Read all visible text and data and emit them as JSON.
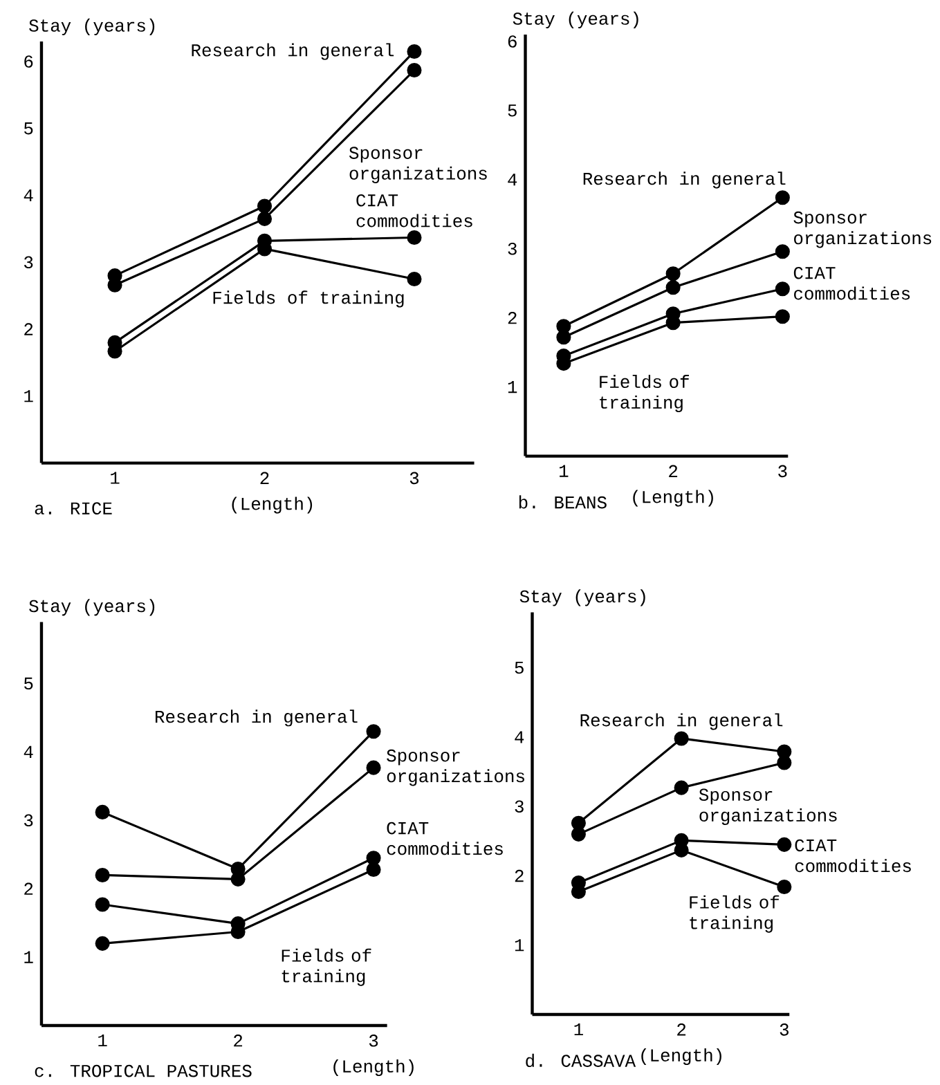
{
  "chart_data": [
    {
      "type": "line",
      "title": "a. RICE",
      "xlabel": "(Length)",
      "ylabel": "Stay (years)",
      "categories": [
        "1",
        "2",
        "3"
      ],
      "ylim": [
        0,
        6.3
      ],
      "yticks": [
        1,
        2,
        3,
        4,
        5,
        6
      ],
      "marker": "circle",
      "series": [
        {
          "name": "Research in general",
          "color": "#000000",
          "values": [
            2.8,
            3.84,
            6.15
          ]
        },
        {
          "name": "Sponsor organizations",
          "color": "#000000",
          "values": [
            2.66,
            3.65,
            5.87
          ]
        },
        {
          "name": "CIAT commodities",
          "color": "#000000",
          "values": [
            1.8,
            3.32,
            3.37
          ]
        },
        {
          "name": "Fields of training",
          "color": "#000000",
          "values": [
            1.67,
            3.2,
            2.75
          ]
        }
      ]
    },
    {
      "type": "line",
      "title": "b. BEANS",
      "xlabel": "(Length)",
      "ylabel": "Stay (years)",
      "categories": [
        "1",
        "2",
        "3"
      ],
      "ylim": [
        0,
        6.1
      ],
      "yticks": [
        1,
        2,
        3,
        4,
        5,
        6
      ],
      "marker": "circle",
      "series": [
        {
          "name": "Research in general",
          "color": "#000000",
          "values": [
            1.88,
            2.64,
            3.74
          ]
        },
        {
          "name": "Sponsor organizations",
          "color": "#000000",
          "values": [
            1.72,
            2.44,
            2.96
          ]
        },
        {
          "name": "CIAT commodities",
          "color": "#000000",
          "values": [
            1.45,
            2.06,
            2.42
          ]
        },
        {
          "name": "Fields of training",
          "color": "#000000",
          "values": [
            1.34,
            1.93,
            2.02
          ]
        }
      ]
    },
    {
      "type": "line",
      "title": "c. TROPICAL PASTURES",
      "xlabel": "(Length)",
      "ylabel": "Stay (years)",
      "categories": [
        "1",
        "2",
        "3"
      ],
      "ylim": [
        0,
        5.9
      ],
      "yticks": [
        1,
        2,
        3,
        4,
        5
      ],
      "marker": "circle",
      "series": [
        {
          "name": "Research in general",
          "color": "#000000",
          "values": [
            3.12,
            2.29,
            4.3
          ]
        },
        {
          "name": "Sponsor organizations",
          "color": "#000000",
          "values": [
            2.2,
            2.14,
            3.77
          ]
        },
        {
          "name": "CIAT commodities",
          "color": "#000000",
          "values": [
            1.77,
            1.49,
            2.45
          ]
        },
        {
          "name": "Fields of training",
          "color": "#000000",
          "values": [
            1.2,
            1.37,
            2.28
          ]
        }
      ]
    },
    {
      "type": "line",
      "title": "d. CASSAVA",
      "xlabel": "(Length)",
      "ylabel": "Stay (years)",
      "categories": [
        "1",
        "2",
        "3"
      ],
      "ylim": [
        0,
        5.8
      ],
      "yticks": [
        1,
        2,
        3,
        4,
        5
      ],
      "marker": "circle",
      "series": [
        {
          "name": "Research in general",
          "color": "#000000",
          "values": [
            2.76,
            3.98,
            3.79
          ]
        },
        {
          "name": "Sponsor organizations",
          "color": "#000000",
          "values": [
            2.6,
            3.27,
            3.63
          ]
        },
        {
          "name": "CIAT commodities",
          "color": "#000000",
          "values": [
            1.9,
            2.51,
            2.45
          ]
        },
        {
          "name": "Fields of training",
          "color": "#000000",
          "values": [
            1.77,
            2.37,
            1.84
          ]
        }
      ]
    }
  ]
}
